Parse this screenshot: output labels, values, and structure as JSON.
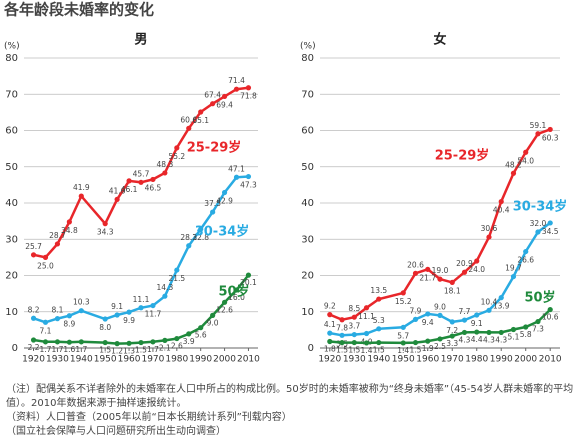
{
  "title": "各年龄段未婚率的变化",
  "chart_data": [
    {
      "type": "line",
      "title": "男",
      "ylabel": "(%)",
      "x": [
        1920,
        1925,
        1930,
        1935,
        1940,
        1950,
        1955,
        1960,
        1965,
        1970,
        1975,
        1980,
        1985,
        1990,
        1995,
        2000,
        2005,
        2010
      ],
      "xlim": [
        1916,
        2014
      ],
      "xticks": [
        1920,
        1930,
        1940,
        1950,
        1960,
        1970,
        1980,
        1990,
        2000,
        2010
      ],
      "ylim": [
        0,
        80
      ],
      "yticks": [
        0,
        10,
        20,
        30,
        40,
        50,
        60,
        70,
        80
      ],
      "grid": true,
      "series": [
        {
          "name": "25-29岁",
          "color": "#e8262a",
          "values": [
            25.7,
            25.0,
            28.7,
            34.8,
            41.9,
            34.3,
            41.0,
            46.1,
            45.7,
            46.5,
            48.3,
            55.2,
            60.6,
            65.1,
            67.4,
            69.4,
            71.4,
            71.8
          ],
          "value_labels": [
            "25.7",
            "25.0",
            "28.7",
            "34.8",
            "41.9",
            "34.3",
            "41.0",
            "46.1",
            "45.7",
            "46.5",
            "48.3",
            "55.2",
            "60.6",
            "65.1",
            "67.4",
            "69.4",
            "71.4",
            "71.8"
          ]
        },
        {
          "name": "30-34岁",
          "color": "#29abe2",
          "values": [
            8.2,
            7.1,
            8.1,
            8.9,
            10.3,
            8.0,
            9.1,
            9.9,
            11.1,
            11.7,
            14.3,
            21.5,
            28.2,
            32.8,
            37.5,
            42.9,
            47.1,
            47.3
          ],
          "value_labels": [
            "8.2",
            "7.1",
            "8.1",
            "8.9",
            "10.3",
            "8.0",
            "9.1",
            "9.9",
            "11.1",
            "11.7",
            "14.3",
            "21.5",
            "28.2",
            "32.8",
            "37.5",
            "42.9",
            "47.1",
            "47.3"
          ]
        },
        {
          "name": "50岁",
          "color": "#1f8a3c",
          "values": [
            2.2,
            1.7,
            1.7,
            1.6,
            1.7,
            1.5,
            1.2,
            1.3,
            1.5,
            1.7,
            2.1,
            2.6,
            3.9,
            5.6,
            9.0,
            12.6,
            16.0,
            20.1
          ],
          "value_labels": [
            "2.2",
            "1.7",
            "1.7",
            "1.6",
            "1.7",
            "1.5",
            "1.2",
            "1.3",
            "1.5",
            "1.7",
            "2.1",
            "2.6",
            "3.9",
            "5.6",
            "9.0",
            "12.6",
            "16.0",
            "20.1"
          ]
        }
      ]
    },
    {
      "type": "line",
      "title": "女",
      "ylabel": "(%)",
      "x": [
        1920,
        1925,
        1930,
        1935,
        1940,
        1950,
        1955,
        1960,
        1965,
        1970,
        1975,
        1980,
        1985,
        1990,
        1995,
        2000,
        2005,
        2010
      ],
      "xlim": [
        1916,
        2014
      ],
      "xticks": [
        1920,
        1930,
        1940,
        1950,
        1960,
        1970,
        1980,
        1990,
        2000,
        2010
      ],
      "ylim": [
        0,
        80
      ],
      "yticks": [
        0,
        10,
        20,
        30,
        40,
        50,
        60,
        70,
        80
      ],
      "grid": true,
      "series": [
        {
          "name": "25-29岁",
          "color": "#e8262a",
          "values": [
            9.2,
            7.8,
            8.5,
            11.1,
            13.5,
            15.2,
            20.6,
            21.7,
            19.0,
            18.1,
            20.9,
            24.0,
            30.6,
            40.4,
            48.2,
            54.0,
            59.1,
            60.3
          ],
          "value_labels": [
            "9.2",
            "7.8",
            "8.5",
            "11.1",
            "13.5",
            "15.2",
            "20.6",
            "21.7",
            "19.0",
            "18.1",
            "20.9",
            "24.0",
            "30.6",
            "40.4",
            "48.2",
            "54.0",
            "59.1",
            "60.3"
          ]
        },
        {
          "name": "30-34岁",
          "color": "#29abe2",
          "values": [
            4.1,
            3.5,
            3.7,
            4.0,
            5.3,
            5.7,
            7.9,
            9.4,
            9.0,
            7.2,
            7.7,
            9.1,
            10.4,
            13.9,
            19.7,
            26.6,
            32.0,
            34.5
          ],
          "value_labels": [
            "4.1",
            "3.5",
            "3.7",
            "4.0",
            "5.3",
            "5.7",
            "7.9",
            "9.4",
            "9.0",
            "7.2",
            "7.7",
            "9.1",
            "10.4",
            "13.9",
            "19.7",
            "26.6",
            "32.0",
            "34.5"
          ]
        },
        {
          "name": "50岁",
          "color": "#1f8a3c",
          "values": [
            1.8,
            1.5,
            1.5,
            1.4,
            1.5,
            1.4,
            1.5,
            1.9,
            2.5,
            3.3,
            4.3,
            4.4,
            4.3,
            4.3,
            5.1,
            5.8,
            7.3,
            10.6
          ],
          "value_labels": [
            "1.8",
            "1.5",
            "1.5",
            "1.4",
            "1.5",
            "1.4",
            "1.5",
            "1.9",
            "2.5",
            "3.3",
            "4.3",
            "4.4",
            "4.3",
            "4.3",
            "5.1",
            "5.8",
            "7.3",
            "10.6"
          ]
        }
      ]
    }
  ],
  "notes": [
    "（注）配偶关系不详者除外的未婚率在人口中所占的构成比例。50岁时的未婚率被称为“终身未婚率”（45-54岁人群未婚率的平均值）。2010年数据来源于抽样速报统计。",
    "（资料）人口普查（2005年以前“日本长期统计系列”刊载内容）",
    "（国立社会保障与人口问题研究所出生动向调查）"
  ]
}
